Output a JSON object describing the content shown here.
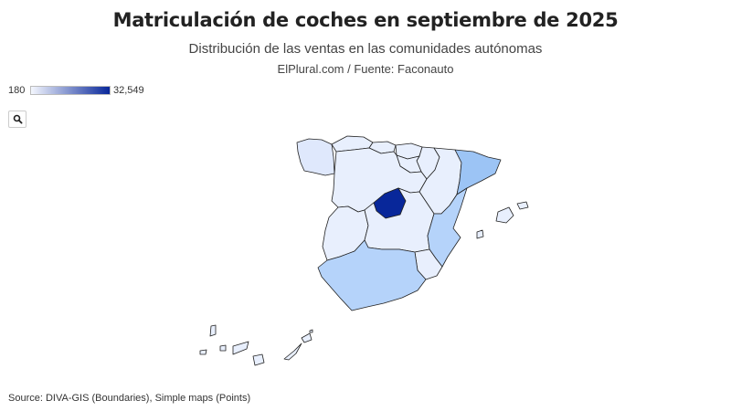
{
  "title": "Matriculación de coches en septiembre de 2025",
  "subtitle": "Distribución de las ventas en las comunidades autónomas",
  "byline": "ElPlural.com / Fuente: Faconauto",
  "legend": {
    "min_label": "180",
    "max_label": "32,549",
    "color_low": "#f4f7fe",
    "color_high": "#08279a"
  },
  "search": {
    "icon": "magnifier-icon"
  },
  "colors": {
    "madrid": "#08279a",
    "mid": "#9cc4f5",
    "mid_light": "#b5d3fa",
    "light": "#dfe8fc",
    "lighter": "#e8effd"
  },
  "source": "Source: DIVA-GIS (Boundaries), Simple maps (Points)"
}
